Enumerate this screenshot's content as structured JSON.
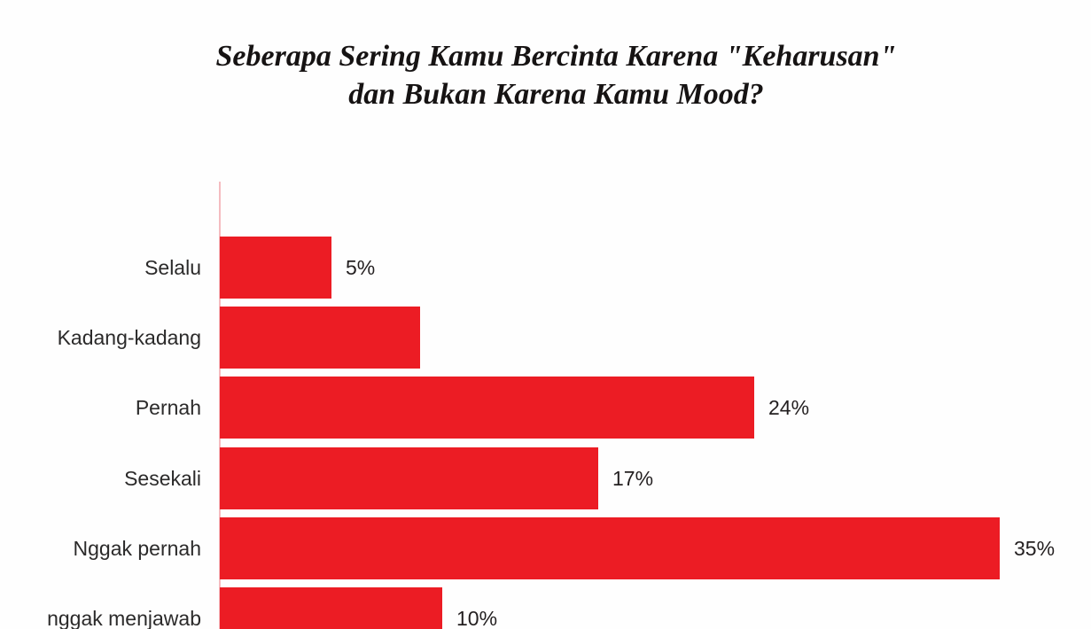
{
  "page": {
    "background_color": "#fefefe",
    "accent_color": "#EC1C24",
    "axis_line_color": "#f5bcc0",
    "text_color": "#231f20"
  },
  "header": {
    "title_line1": "Seberapa Sering Kamu Bercinta Karena \"Keharusan\"",
    "title_line2": "dan Bukan Karena Kamu Mood?"
  },
  "chart_data": {
    "type": "bar",
    "orientation": "horizontal",
    "title": "Seberapa Sering Kamu Bercinta Karena \"Keharusan\" dan Bukan Karena Kamu Mood?",
    "categories": [
      "Selalu",
      "Kadang-kadang",
      "Pernah",
      "Sesekali",
      "Nggak pernah",
      "nggak menjawab"
    ],
    "values": [
      5,
      9,
      24,
      17,
      35,
      10
    ],
    "value_labels": [
      "5%",
      "",
      "24%",
      "17%",
      "35%",
      "10%"
    ],
    "value_label_note": "Kadang-kadang bar shows no percentage label in the image; 9 is estimated from its bar length",
    "bar_color": "#EC1C24",
    "xlim": [
      0,
      35
    ],
    "grid": false,
    "legend": false,
    "axis": "single left vertical axis line, no tick labels"
  }
}
